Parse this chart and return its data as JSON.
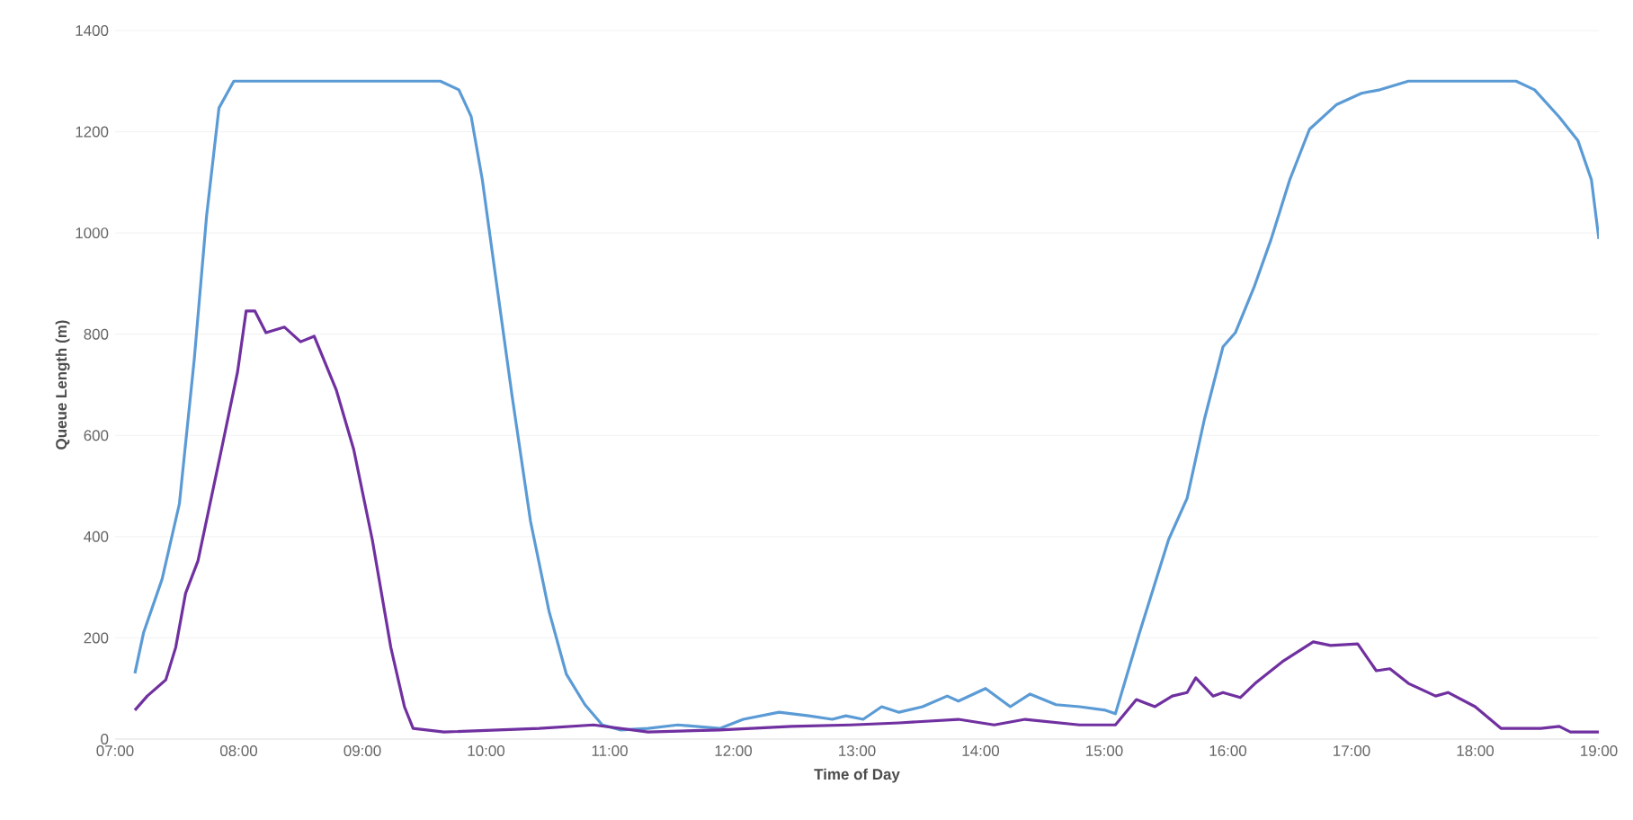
{
  "chart_data": {
    "type": "line",
    "xlabel": "Time of Day",
    "ylabel": "Queue Length (m)",
    "xlim": [
      7,
      19
    ],
    "ylim": [
      0,
      1400
    ],
    "xticks": [
      {
        "value": 7,
        "label": "07:00"
      },
      {
        "value": 8,
        "label": "08:00"
      },
      {
        "value": 9,
        "label": "09:00"
      },
      {
        "value": 10,
        "label": "10:00"
      },
      {
        "value": 11,
        "label": "11:00"
      },
      {
        "value": 12,
        "label": "12:00"
      },
      {
        "value": 13,
        "label": "13:00"
      },
      {
        "value": 14,
        "label": "14:00"
      },
      {
        "value": 15,
        "label": "15:00"
      },
      {
        "value": 16,
        "label": "16:00"
      },
      {
        "value": 17,
        "label": "17:00"
      },
      {
        "value": 18,
        "label": "18:00"
      },
      {
        "value": 19,
        "label": "19:00"
      }
    ],
    "yticks": [
      0,
      200,
      400,
      600,
      800,
      1000,
      1200,
      1400
    ],
    "grid": "y",
    "legend": false,
    "marker": "none",
    "line_style": "solid",
    "series": [
      {
        "color": "#5b9bd5",
        "x": [
          7.16,
          7.23,
          7.38,
          7.52,
          7.64,
          7.74,
          7.84,
          7.96,
          9.63,
          9.78,
          9.88,
          9.97,
          10.07,
          10.21,
          10.36,
          10.51,
          10.65,
          10.8,
          10.94,
          11.09,
          11.31,
          11.55,
          11.89,
          12.08,
          12.37,
          12.61,
          12.8,
          12.91,
          13.05,
          13.2,
          13.34,
          13.53,
          13.73,
          13.82,
          14.04,
          14.24,
          14.4,
          14.61,
          14.8,
          15.01,
          15.09,
          15.28,
          15.52,
          15.67,
          15.81,
          15.96,
          16.06,
          16.21,
          16.35,
          16.5,
          16.66,
          16.88,
          17.08,
          17.23,
          17.46,
          18.33,
          18.48,
          18.68,
          18.83,
          18.94,
          19
        ],
        "values": [
          130,
          210,
          316,
          465,
          750,
          1034,
          1247,
          1300,
          1300,
          1283,
          1230,
          1105,
          927,
          679,
          430,
          252,
          128,
          68,
          28,
          18,
          21,
          28,
          21,
          39,
          53,
          46,
          39,
          46,
          39,
          64,
          53,
          64,
          85,
          75,
          100,
          64,
          89,
          68,
          64,
          57,
          50,
          206,
          394,
          476,
          632,
          775,
          803,
          892,
          988,
          1105,
          1205,
          1254,
          1276,
          1283,
          1300,
          1300,
          1283,
          1229,
          1183,
          1105,
          988
        ]
      },
      {
        "color": "#7030a0",
        "x": [
          7.16,
          7.26,
          7.41,
          7.49,
          7.57,
          7.67,
          7.86,
          7.99,
          8.06,
          8.13,
          8.22,
          8.37,
          8.5,
          8.61,
          8.79,
          8.93,
          9.08,
          9.23,
          9.34,
          9.41,
          9.66,
          10.43,
          10.87,
          11.31,
          11.89,
          12.47,
          12.95,
          13.34,
          13.82,
          14.11,
          14.36,
          14.8,
          15.09,
          15.26,
          15.41,
          15.55,
          15.67,
          15.74,
          15.88,
          15.96,
          16.1,
          16.22,
          16.44,
          16.69,
          16.83,
          17.05,
          17.2,
          17.31,
          17.46,
          17.68,
          17.78,
          18,
          18.21,
          18.53,
          18.68,
          18.77,
          19
        ],
        "values": [
          57,
          85,
          117,
          181,
          288,
          352,
          572,
          725,
          846,
          846,
          803,
          814,
          785,
          796,
          689,
          572,
          394,
          181,
          64,
          21,
          14,
          21,
          28,
          14,
          18,
          25,
          28,
          32,
          39,
          28,
          39,
          28,
          28,
          78,
          64,
          85,
          92,
          121,
          85,
          92,
          82,
          110,
          153,
          192,
          185,
          188,
          135,
          139,
          110,
          85,
          92,
          64,
          21,
          21,
          25,
          14,
          14
        ]
      }
    ]
  }
}
